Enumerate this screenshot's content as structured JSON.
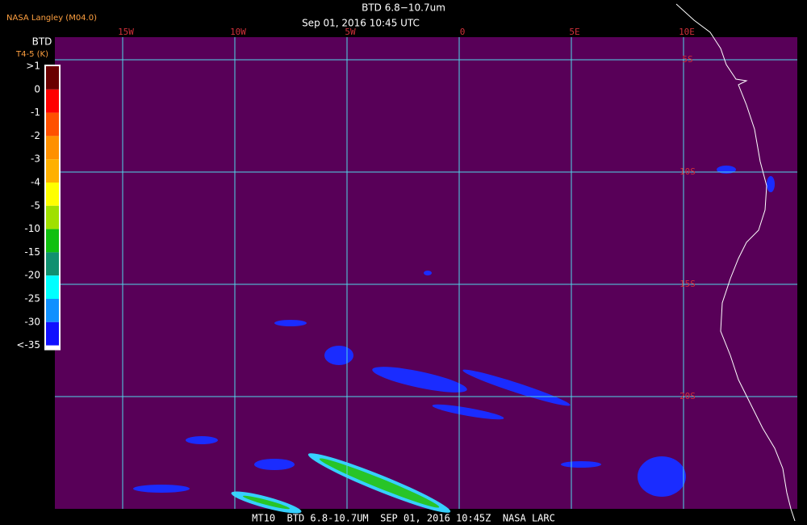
{
  "header": {
    "source": "NASA Langley (M04.0)",
    "title": "BTD 6.8−10.7um",
    "subtitle": "Sep 01, 2016 10:45 UTC"
  },
  "legend": {
    "title": "BTD",
    "units": "T4-5 (K)",
    "labels": [
      ">1",
      "0",
      "-1",
      "-2",
      "-3",
      "-4",
      "-5",
      "-10",
      "-15",
      "-20",
      "-25",
      "-30",
      "<-35"
    ]
  },
  "grid": {
    "longitudes": [
      "15W",
      "10W",
      "5W",
      "0",
      "5E",
      "10E"
    ],
    "latitudes": [
      "5S",
      "10S",
      "15S",
      "20S"
    ]
  },
  "footer": "MT10  BTD 6.8-10.7UM  SEP 01, 2016 10:45Z  NASA LARC"
}
